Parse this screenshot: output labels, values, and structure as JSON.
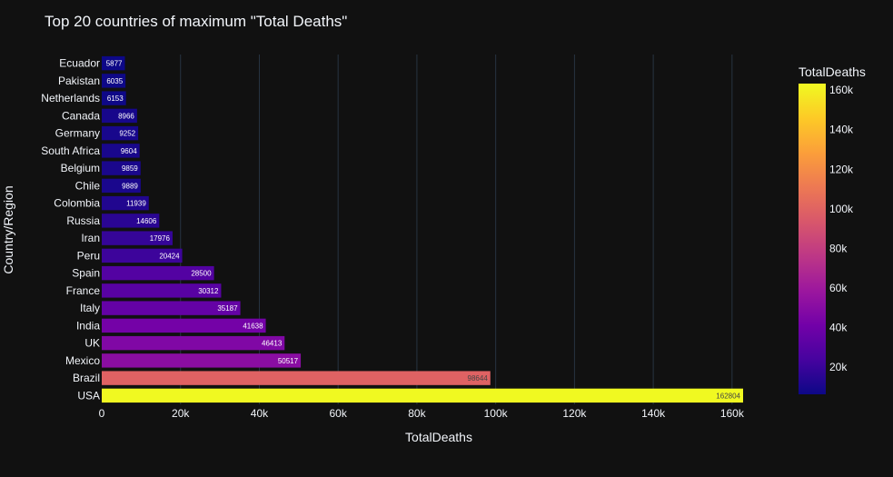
{
  "chart_data": {
    "type": "bar",
    "orientation": "horizontal",
    "title": "Top 20 countries of maximum \"Total Deaths\"",
    "xlabel": "TotalDeaths",
    "ylabel": "Country/Region",
    "categories": [
      "USA",
      "Brazil",
      "Mexico",
      "UK",
      "India",
      "Italy",
      "France",
      "Spain",
      "Peru",
      "Iran",
      "Russia",
      "Colombia",
      "Chile",
      "Belgium",
      "South Africa",
      "Germany",
      "Canada",
      "Netherlands",
      "Pakistan",
      "Ecuador"
    ],
    "values": [
      162804,
      98644,
      50517,
      46413,
      41638,
      35187,
      30312,
      28500,
      20424,
      17976,
      14606,
      11939,
      9889,
      9859,
      9604,
      9252,
      8966,
      6153,
      6035,
      5877
    ],
    "xlim": [
      0,
      162804
    ],
    "xticks": [
      0,
      20000,
      40000,
      60000,
      80000,
      100000,
      120000,
      140000,
      160000
    ],
    "xtick_labels": [
      "0",
      "20k",
      "40k",
      "60k",
      "80k",
      "100k",
      "120k",
      "140k",
      "160k"
    ],
    "grid": "vertical",
    "colorbar": {
      "title": "TotalDeaths",
      "min": 5877,
      "max": 162804,
      "ticks": [
        20000,
        40000,
        60000,
        80000,
        100000,
        120000,
        140000,
        160000
      ],
      "tick_labels": [
        "20k",
        "40k",
        "60k",
        "80k",
        "100k",
        "120k",
        "140k",
        "160k"
      ],
      "colorscale": "plasma"
    }
  },
  "colors": {
    "background": "#111111",
    "text": "#f2f5fa",
    "grid": "#283442",
    "plasma": [
      "#0d0887",
      "#46039f",
      "#7201a8",
      "#9c179e",
      "#bd3786",
      "#d8576b",
      "#ed7953",
      "#fb9f3a",
      "#fdca26",
      "#f0f921"
    ]
  }
}
